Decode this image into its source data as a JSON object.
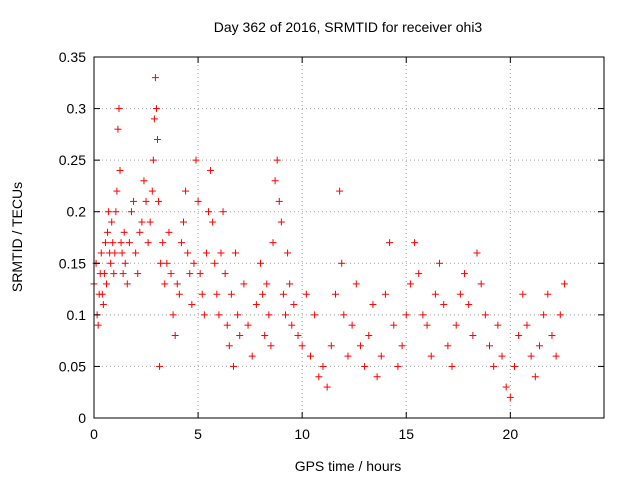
{
  "chart_data": {
    "type": "scatter",
    "title": "Day 362 of 2016, SRMTID for receiver ohi3",
    "xlabel": "GPS time / hours",
    "ylabel": "SRMTID / TECUs",
    "xlim": [
      0,
      24.5
    ],
    "ylim": [
      0,
      0.35
    ],
    "xticks": [
      0,
      5,
      10,
      15,
      20
    ],
    "xtick_labels": [
      "0",
      "5",
      "10",
      "15",
      "20"
    ],
    "yticks": [
      0,
      0.05,
      0.1,
      0.15,
      0.2,
      0.25,
      0.3,
      0.35
    ],
    "ytick_labels": [
      "0",
      "0.05",
      "0.1",
      "0.15",
      "0.2",
      "0.25",
      "0.3",
      "0.35"
    ],
    "grid": true,
    "marker": "+",
    "color": "#ff0000",
    "series": [
      {
        "name": "SRMTID",
        "points": [
          [
            0.0,
            0.13
          ],
          [
            0.1,
            0.15
          ],
          [
            0.15,
            0.1
          ],
          [
            0.2,
            0.09
          ],
          [
            0.25,
            0.12
          ],
          [
            0.3,
            0.14
          ],
          [
            0.35,
            0.16
          ],
          [
            0.4,
            0.12
          ],
          [
            0.45,
            0.11
          ],
          [
            0.5,
            0.14
          ],
          [
            0.55,
            0.17
          ],
          [
            0.6,
            0.13
          ],
          [
            0.65,
            0.18
          ],
          [
            0.7,
            0.2
          ],
          [
            0.75,
            0.16
          ],
          [
            0.8,
            0.15
          ],
          [
            0.85,
            0.19
          ],
          [
            0.9,
            0.17
          ],
          [
            0.95,
            0.14
          ],
          [
            1.0,
            0.16
          ],
          [
            1.05,
            0.2
          ],
          [
            1.1,
            0.22
          ],
          [
            1.15,
            0.28
          ],
          [
            1.2,
            0.3
          ],
          [
            1.25,
            0.24
          ],
          [
            1.3,
            0.17
          ],
          [
            1.35,
            0.16
          ],
          [
            1.4,
            0.14
          ],
          [
            1.45,
            0.18
          ],
          [
            1.5,
            0.15
          ],
          [
            1.6,
            0.13
          ],
          [
            1.7,
            0.17
          ],
          [
            1.8,
            0.2
          ],
          [
            1.9,
            0.21
          ],
          [
            2.0,
            0.16
          ],
          [
            2.1,
            0.14
          ],
          [
            2.2,
            0.18
          ],
          [
            2.3,
            0.19
          ],
          [
            2.4,
            0.23
          ],
          [
            2.5,
            0.21
          ],
          [
            2.6,
            0.17
          ],
          [
            2.7,
            0.19
          ],
          [
            2.8,
            0.22
          ],
          [
            2.85,
            0.25
          ],
          [
            2.9,
            0.29
          ],
          [
            2.95,
            0.33
          ],
          [
            3.0,
            0.3
          ],
          [
            3.05,
            0.27
          ],
          [
            3.1,
            0.21
          ],
          [
            3.15,
            0.05
          ],
          [
            3.2,
            0.15
          ],
          [
            3.3,
            0.17
          ],
          [
            3.4,
            0.13
          ],
          [
            3.5,
            0.15
          ],
          [
            3.6,
            0.18
          ],
          [
            3.7,
            0.14
          ],
          [
            3.8,
            0.1
          ],
          [
            3.9,
            0.08
          ],
          [
            4.0,
            0.13
          ],
          [
            4.1,
            0.12
          ],
          [
            4.2,
            0.17
          ],
          [
            4.3,
            0.19
          ],
          [
            4.4,
            0.22
          ],
          [
            4.5,
            0.16
          ],
          [
            4.6,
            0.14
          ],
          [
            4.7,
            0.11
          ],
          [
            4.8,
            0.15
          ],
          [
            4.9,
            0.25
          ],
          [
            5.0,
            0.21
          ],
          [
            5.1,
            0.14
          ],
          [
            5.2,
            0.12
          ],
          [
            5.3,
            0.1
          ],
          [
            5.4,
            0.16
          ],
          [
            5.5,
            0.2
          ],
          [
            5.6,
            0.24
          ],
          [
            5.7,
            0.19
          ],
          [
            5.8,
            0.15
          ],
          [
            5.9,
            0.12
          ],
          [
            6.0,
            0.1
          ],
          [
            6.1,
            0.16
          ],
          [
            6.2,
            0.2
          ],
          [
            6.3,
            0.14
          ],
          [
            6.4,
            0.09
          ],
          [
            6.5,
            0.07
          ],
          [
            6.6,
            0.12
          ],
          [
            6.7,
            0.05
          ],
          [
            6.8,
            0.16
          ],
          [
            6.9,
            0.1
          ],
          [
            7.0,
            0.08
          ],
          [
            7.2,
            0.13
          ],
          [
            7.4,
            0.09
          ],
          [
            7.6,
            0.06
          ],
          [
            7.8,
            0.11
          ],
          [
            8.0,
            0.15
          ],
          [
            8.1,
            0.12
          ],
          [
            8.2,
            0.08
          ],
          [
            8.3,
            0.13
          ],
          [
            8.4,
            0.1
          ],
          [
            8.5,
            0.07
          ],
          [
            8.6,
            0.17
          ],
          [
            8.7,
            0.23
          ],
          [
            8.8,
            0.25
          ],
          [
            8.9,
            0.21
          ],
          [
            9.0,
            0.19
          ],
          [
            9.1,
            0.12
          ],
          [
            9.2,
            0.1
          ],
          [
            9.3,
            0.16
          ],
          [
            9.4,
            0.13
          ],
          [
            9.5,
            0.09
          ],
          [
            9.6,
            0.11
          ],
          [
            9.8,
            0.08
          ],
          [
            10.0,
            0.07
          ],
          [
            10.2,
            0.12
          ],
          [
            10.4,
            0.06
          ],
          [
            10.6,
            0.1
          ],
          [
            10.8,
            0.04
          ],
          [
            11.0,
            0.05
          ],
          [
            11.2,
            0.03
          ],
          [
            11.4,
            0.07
          ],
          [
            11.6,
            0.12
          ],
          [
            11.8,
            0.22
          ],
          [
            11.9,
            0.15
          ],
          [
            12.0,
            0.1
          ],
          [
            12.2,
            0.06
          ],
          [
            12.4,
            0.09
          ],
          [
            12.6,
            0.13
          ],
          [
            12.8,
            0.07
          ],
          [
            13.0,
            0.05
          ],
          [
            13.2,
            0.08
          ],
          [
            13.4,
            0.11
          ],
          [
            13.6,
            0.04
          ],
          [
            13.8,
            0.06
          ],
          [
            14.0,
            0.12
          ],
          [
            14.2,
            0.17
          ],
          [
            14.4,
            0.09
          ],
          [
            14.6,
            0.05
          ],
          [
            14.8,
            0.07
          ],
          [
            15.0,
            0.1
          ],
          [
            15.2,
            0.13
          ],
          [
            15.4,
            0.17
          ],
          [
            15.6,
            0.14
          ],
          [
            15.8,
            0.1
          ],
          [
            16.0,
            0.09
          ],
          [
            16.2,
            0.06
          ],
          [
            16.4,
            0.12
          ],
          [
            16.6,
            0.15
          ],
          [
            16.8,
            0.11
          ],
          [
            17.0,
            0.07
          ],
          [
            17.2,
            0.05
          ],
          [
            17.4,
            0.09
          ],
          [
            17.6,
            0.12
          ],
          [
            17.8,
            0.14
          ],
          [
            18.0,
            0.11
          ],
          [
            18.2,
            0.08
          ],
          [
            18.4,
            0.16
          ],
          [
            18.6,
            0.13
          ],
          [
            18.8,
            0.1
          ],
          [
            19.0,
            0.07
          ],
          [
            19.2,
            0.05
          ],
          [
            19.4,
            0.09
          ],
          [
            19.6,
            0.06
          ],
          [
            19.8,
            0.03
          ],
          [
            20.0,
            0.02
          ],
          [
            20.2,
            0.05
          ],
          [
            20.4,
            0.08
          ],
          [
            20.6,
            0.12
          ],
          [
            20.8,
            0.09
          ],
          [
            21.0,
            0.06
          ],
          [
            21.2,
            0.04
          ],
          [
            21.4,
            0.07
          ],
          [
            21.6,
            0.1
          ],
          [
            21.8,
            0.12
          ],
          [
            22.0,
            0.08
          ],
          [
            22.2,
            0.06
          ],
          [
            22.4,
            0.1
          ],
          [
            22.6,
            0.13
          ]
        ]
      }
    ]
  }
}
